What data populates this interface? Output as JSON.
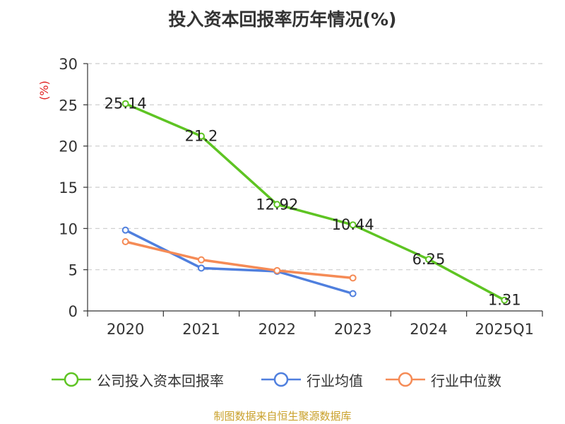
{
  "chart_data": {
    "type": "line",
    "title": "投入资本回报率历年情况(%)",
    "ylabel": "(%)",
    "xlabel": "",
    "categories": [
      "2020",
      "2021",
      "2022",
      "2023",
      "2024",
      "2025Q1"
    ],
    "ylim": [
      0,
      30
    ],
    "yticks": [
      0,
      5,
      10,
      15,
      20,
      25,
      30
    ],
    "grid": true,
    "legend_position": "bottom",
    "series": [
      {
        "name": "公司投入资本回报率",
        "color": "#5ec423",
        "values": [
          25.14,
          21.2,
          12.92,
          10.44,
          6.25,
          1.31
        ],
        "labels": [
          "25.14",
          "21.2",
          "12.92",
          "10.44",
          "6.25",
          "1.31"
        ]
      },
      {
        "name": "行业均值",
        "color": "#4f7fde",
        "values": [
          9.8,
          5.2,
          4.8,
          2.1,
          null,
          null
        ]
      },
      {
        "name": "行业中位数",
        "color": "#f58b56",
        "values": [
          8.4,
          6.2,
          4.9,
          4.0,
          null,
          null
        ]
      }
    ]
  },
  "source": "制图数据来自恒生聚源数据库"
}
